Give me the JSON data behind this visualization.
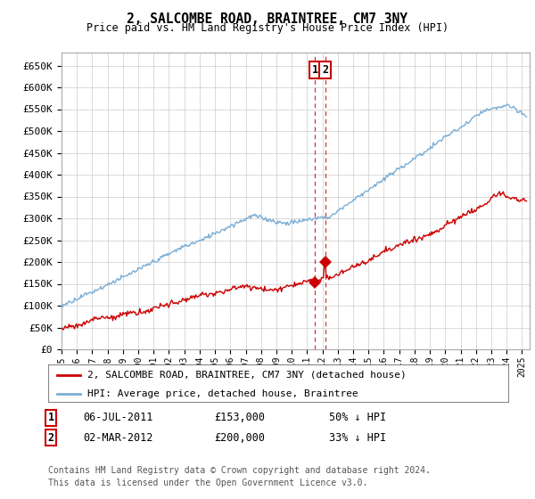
{
  "title": "2, SALCOMBE ROAD, BRAINTREE, CM7 3NY",
  "subtitle": "Price paid vs. HM Land Registry's House Price Index (HPI)",
  "ylabel_ticks": [
    "£0",
    "£50K",
    "£100K",
    "£150K",
    "£200K",
    "£250K",
    "£300K",
    "£350K",
    "£400K",
    "£450K",
    "£500K",
    "£550K",
    "£600K",
    "£650K"
  ],
  "ytick_values": [
    0,
    50000,
    100000,
    150000,
    200000,
    250000,
    300000,
    350000,
    400000,
    450000,
    500000,
    550000,
    600000,
    650000
  ],
  "ylim": [
    0,
    680000
  ],
  "xlim_start": 1995.0,
  "xlim_end": 2025.5,
  "sale1_date": "06-JUL-2011",
  "sale1_price": 153000,
  "sale1_year": 2011.51,
  "sale2_date": "02-MAR-2012",
  "sale2_price": 200000,
  "sale2_year": 2012.17,
  "legend_line1": "2, SALCOMBE ROAD, BRAINTREE, CM7 3NY (detached house)",
  "legend_line2": "HPI: Average price, detached house, Braintree",
  "footer1": "Contains HM Land Registry data © Crown copyright and database right 2024.",
  "footer2": "This data is licensed under the Open Government Licence v3.0.",
  "red_color": "#cc0000",
  "blue_color": "#7aaed6",
  "grid_color": "#cccccc",
  "background_color": "#ffffff"
}
